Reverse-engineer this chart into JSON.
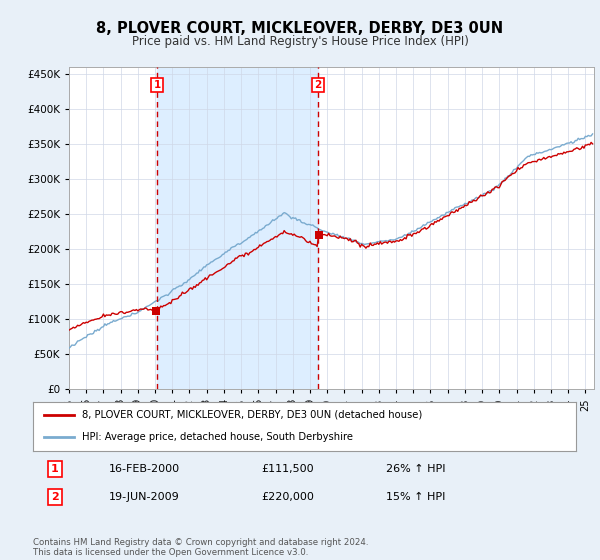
{
  "title": "8, PLOVER COURT, MICKLEOVER, DERBY, DE3 0UN",
  "subtitle": "Price paid vs. HM Land Registry's House Price Index (HPI)",
  "legend_entry1": "8, PLOVER COURT, MICKLEOVER, DERBY, DE3 0UN (detached house)",
  "legend_entry2": "HPI: Average price, detached house, South Derbyshire",
  "transaction1_year": 2000.12,
  "transaction1_label": "16-FEB-2000",
  "transaction1_price": "£111,500",
  "transaction1_hpi": "26% ↑ HPI",
  "transaction2_year": 2009.46,
  "transaction2_label": "19-JUN-2009",
  "transaction2_price": "£220,000",
  "transaction2_hpi": "15% ↑ HPI",
  "footer": "Contains HM Land Registry data © Crown copyright and database right 2024.\nThis data is licensed under the Open Government Licence v3.0.",
  "line_color_red": "#cc0000",
  "line_color_blue": "#7aabcf",
  "shade_color": "#ddeeff",
  "vline_color": "#cc0000",
  "background_color": "#e8f0f8",
  "plot_bg": "#ffffff",
  "ylim_min": 0,
  "ylim_max": 460000,
  "xlim_min": 1995,
  "xlim_max": 2025.5
}
